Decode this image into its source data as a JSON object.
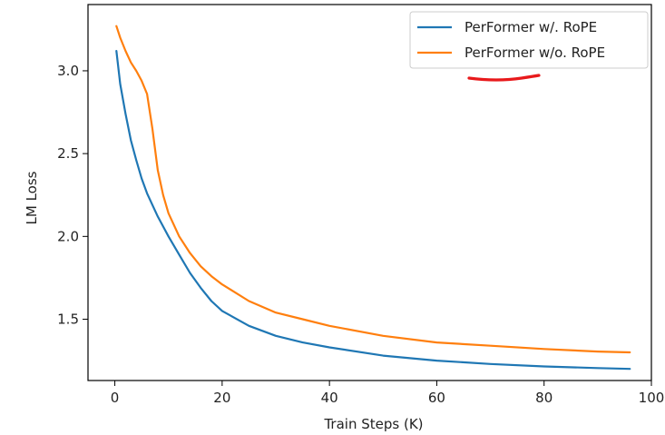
{
  "chart_data": {
    "type": "line",
    "title": "",
    "xlabel": "Train Steps (K)",
    "ylabel": "LM Loss",
    "xlim": [
      -5,
      100
    ],
    "ylim": [
      1.13,
      3.4
    ],
    "xticks": [
      0,
      20,
      40,
      60,
      80,
      100
    ],
    "xtick_labels": [
      "0",
      "20",
      "40",
      "60",
      "80",
      "100"
    ],
    "yticks": [
      1.5,
      2.0,
      2.5,
      3.0
    ],
    "ytick_labels": [
      "1.5",
      "2.0",
      "2.5",
      "3.0"
    ],
    "grid": false,
    "legend_position": "top-right",
    "series": [
      {
        "name": "PerFormer w/. RoPE",
        "color": "#1f77b4",
        "x": [
          0.3,
          1,
          2,
          3,
          4,
          5,
          6,
          8,
          10,
          12,
          14,
          16,
          18,
          20,
          25,
          30,
          35,
          40,
          50,
          60,
          70,
          80,
          90,
          96
        ],
        "y": [
          3.12,
          2.92,
          2.74,
          2.58,
          2.46,
          2.35,
          2.26,
          2.12,
          2.0,
          1.89,
          1.78,
          1.69,
          1.61,
          1.55,
          1.46,
          1.4,
          1.36,
          1.33,
          1.28,
          1.25,
          1.23,
          1.215,
          1.205,
          1.2
        ]
      },
      {
        "name": "PerFormer w/o. RoPE",
        "color": "#ff7f0e",
        "x": [
          0.3,
          1,
          2,
          3,
          4,
          5,
          6,
          7,
          8,
          9,
          10,
          12,
          14,
          16,
          18,
          20,
          25,
          30,
          35,
          40,
          50,
          60,
          70,
          80,
          90,
          96
        ],
        "y": [
          3.27,
          3.2,
          3.12,
          3.05,
          3.0,
          2.94,
          2.86,
          2.65,
          2.4,
          2.25,
          2.14,
          2.0,
          1.9,
          1.82,
          1.76,
          1.71,
          1.61,
          1.54,
          1.5,
          1.46,
          1.4,
          1.36,
          1.34,
          1.32,
          1.305,
          1.3
        ]
      }
    ]
  }
}
